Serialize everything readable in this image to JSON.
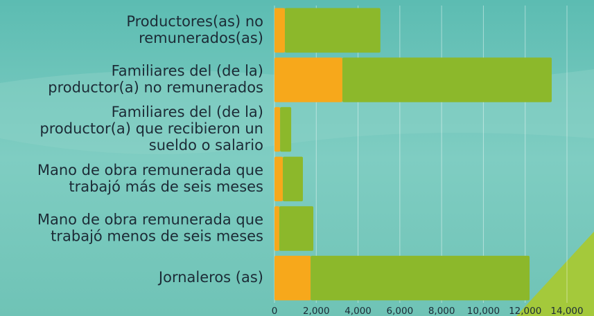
{
  "chart_data": {
    "type": "stacked-barh",
    "categories": [
      "Productores(as) no\nremunerados(as)",
      "Familiares del (de la)\nproductor(a) no remunerados",
      "Familiares del (de la)\nproductor(a) que recibieron un\nsueldo o salario",
      "Mano de obra remunerada que\ntrabajó más de seis meses",
      "Mano de obra remunerada que\ntrabajó menos de seis meses",
      "Jornaleros (as)"
    ],
    "series": [
      {
        "color": "#f7a81b",
        "values": [
          500,
          3250,
          270,
          400,
          230,
          1730
        ]
      },
      {
        "color": "#8cb82b",
        "values": [
          4570,
          10020,
          530,
          960,
          1630,
          10480
        ]
      }
    ],
    "xlim": [
      0,
      14000
    ],
    "xticks": [
      0,
      {
        "value": 2000,
        "label": "2,000"
      },
      {
        "value": 4000,
        "label": "4,000"
      },
      {
        "value": 6000,
        "label": "6,000"
      },
      {
        "value": 8000,
        "label": "8,000"
      },
      {
        "value": 10000,
        "label": "10,000"
      },
      {
        "value": 12000,
        "label": "12,000"
      },
      {
        "value": 14000,
        "label": "14,000"
      }
    ],
    "grid": true
  }
}
